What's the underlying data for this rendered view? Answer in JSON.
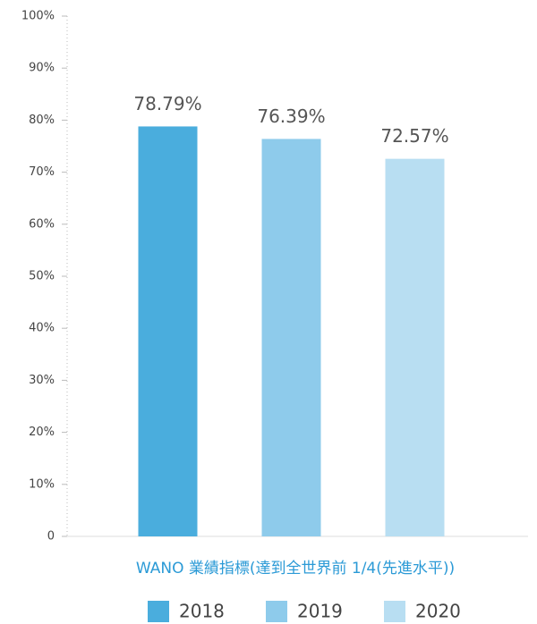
{
  "chart_data": {
    "type": "bar",
    "x_label": "WANO 業績指標(達到全世界前 1/4(先進水平))",
    "categories": [
      null
    ],
    "series": [
      {
        "name": "2018",
        "color": "#4aaddd",
        "values": [
          78.79
        ],
        "value_labels": [
          "78.79%"
        ]
      },
      {
        "name": "2019",
        "color": "#8ecbeb",
        "values": [
          76.39
        ],
        "value_labels": [
          "76.39%"
        ]
      },
      {
        "name": "2020",
        "color": "#b8def2",
        "values": [
          72.57
        ],
        "value_labels": [
          "72.57%"
        ]
      }
    ],
    "ylim": [
      0,
      100
    ],
    "yticks": [
      0,
      {
        "value": 10,
        "label": "10%"
      },
      {
        "value": 20,
        "label": "20%"
      },
      {
        "value": 30,
        "label": "30%"
      },
      {
        "value": 40,
        "label": "40%"
      },
      {
        "value": 50,
        "label": "50%"
      },
      {
        "value": 60,
        "label": "60%"
      },
      {
        "value": 70,
        "label": "70%"
      },
      {
        "value": 80,
        "label": "80%"
      },
      {
        "value": 90,
        "label": "90%"
      },
      {
        "value": 100,
        "label": "100%"
      }
    ],
    "legend": "bottom"
  }
}
